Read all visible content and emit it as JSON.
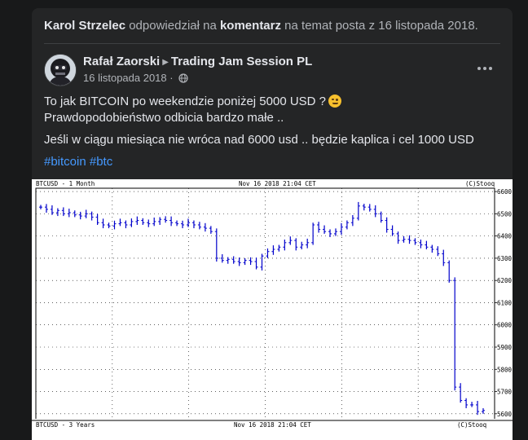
{
  "activity": {
    "actor": "Karol Strzelec",
    "verb": "odpowiedział na",
    "object": "komentarz",
    "rest": "na temat posta z 16 listopada 2018."
  },
  "post": {
    "author": "Rafał Zaorski",
    "group": "Trading Jam Session PL",
    "date": "16 listopada 2018",
    "separator": "·",
    "line1": "To jak BITCOIN po weekendzie poniżej 5000 USD ?",
    "line2": "Prawdopodobieństwo odbicia bardzo małe ..",
    "line3": "Jeśli w ciągu miesiąca nie wróca nad 6000 usd .. będzie kaplica i cel 1000 USD",
    "hashtags": [
      "#bitcoin",
      "#btc"
    ],
    "emoji_icon": "winking-face-icon",
    "audience_icon": "globe-icon",
    "menu_icon": "more-options-icon"
  },
  "chart_data": {
    "type": "bar",
    "subtype": "ohlc",
    "header_left": "BTCUSD - 1 Month",
    "header_center": "Nov 16 2018 21:04 CET",
    "header_right": "(C)Stooq",
    "footer_left": "BTCUSD - 3 Years",
    "footer_center": "Nov 16 2018 21:04 CET",
    "footer_right": "(C)Stooq",
    "yticks": [
      6600,
      6500,
      6400,
      6300,
      6200,
      6100,
      6000,
      5900,
      5800,
      5700,
      5600
    ],
    "ylim": [
      5570,
      6615
    ],
    "grid": true,
    "series_color": "#0000cc",
    "closes": [
      6530,
      6520,
      6505,
      6515,
      6500,
      6505,
      6495,
      6490,
      6500,
      6485,
      6460,
      6450,
      6445,
      6455,
      6460,
      6450,
      6465,
      6470,
      6460,
      6455,
      6465,
      6475,
      6470,
      6460,
      6455,
      6450,
      6460,
      6450,
      6440,
      6435,
      6420,
      6300,
      6290,
      6295,
      6285,
      6280,
      6290,
      6285,
      6260,
      6310,
      6330,
      6340,
      6350,
      6370,
      6380,
      6350,
      6360,
      6370,
      6450,
      6430,
      6420,
      6410,
      6420,
      6440,
      6460,
      6480,
      6535,
      6530,
      6520,
      6500,
      6470,
      6430,
      6410,
      6380,
      6385,
      6380,
      6370,
      6360,
      6350,
      6340,
      6320,
      6280,
      6200,
      5720,
      5660,
      5640,
      5640,
      5610,
      5615
    ]
  }
}
